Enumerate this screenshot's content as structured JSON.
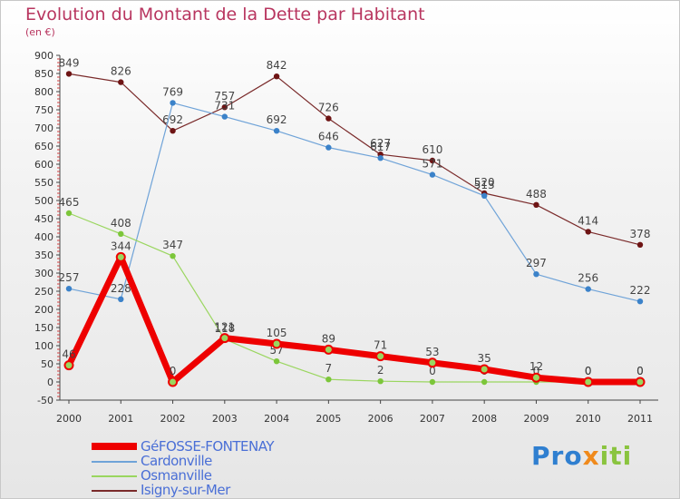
{
  "title": "Evolution du Montant de la Dette par Habitant",
  "subtitle": "(en €)",
  "logo": {
    "text": "Proxiti"
  },
  "legend": [
    {
      "name": "GéFOSSE-FONTENAY",
      "color": "#ee0000"
    },
    {
      "name": "Cardonville",
      "color": "#5b9bd5"
    },
    {
      "name": "Osmanville",
      "color": "#8fd14f"
    },
    {
      "name": "Isigny-sur-Mer",
      "color": "#7a2a2a"
    }
  ],
  "chart_data": {
    "type": "line",
    "title": "Evolution du Montant de la Dette par Habitant",
    "subtitle": "(en €)",
    "x": [
      "2000",
      "2001",
      "2002",
      "2003",
      "2004",
      "2005",
      "2006",
      "2007",
      "2008",
      "2009",
      "2010",
      "2011"
    ],
    "ylim": [
      -50,
      900
    ],
    "yticks": [
      -50,
      0,
      50,
      100,
      150,
      200,
      250,
      300,
      350,
      400,
      450,
      500,
      550,
      600,
      650,
      700,
      750,
      800,
      850,
      900
    ],
    "grid": false,
    "legend_position": "bottom-left",
    "series": [
      {
        "name": "Isigny-sur-Mer",
        "color": "#7a2a2a",
        "marker_color": "#6e1414",
        "width": 1.2,
        "values": [
          849,
          826,
          692,
          757,
          842,
          726,
          627,
          610,
          520,
          488,
          414,
          378
        ],
        "labels": [
          "849",
          "826",
          "692",
          "757",
          "842",
          "726",
          "627",
          "610",
          "520",
          "488",
          "414",
          "378"
        ]
      },
      {
        "name": "Cardonville",
        "color": "#6fa3d8",
        "marker_color": "#3b82c9",
        "width": 1.2,
        "values": [
          257,
          228,
          769,
          731,
          692,
          646,
          617,
          571,
          513,
          297,
          256,
          222
        ],
        "labels": [
          "257",
          "228",
          "769",
          "731",
          "692",
          "646",
          "617",
          "571",
          "513",
          "297",
          "256",
          "222"
        ]
      },
      {
        "name": "Osmanville",
        "color": "#9ad65f",
        "marker_color": "#7cc63a",
        "width": 1.2,
        "values": [
          465,
          408,
          347,
          118,
          57,
          7,
          2,
          0,
          0,
          0,
          0,
          0
        ],
        "labels": [
          "465",
          "408",
          "347",
          "118",
          "57",
          "7",
          "2",
          "0",
          "0",
          "0",
          "0",
          "0"
        ]
      },
      {
        "name": "GéFOSSE-FONTENAY",
        "color": "#ee0000",
        "marker_color": "#ee0000",
        "width": 7,
        "values": [
          46,
          344,
          0,
          121,
          105,
          89,
          71,
          53,
          35,
          12,
          0,
          0
        ],
        "labels": [
          "46",
          "344",
          "0",
          "121",
          "105",
          "89",
          "71",
          "53",
          "35",
          "12",
          "0",
          "0"
        ]
      }
    ]
  }
}
